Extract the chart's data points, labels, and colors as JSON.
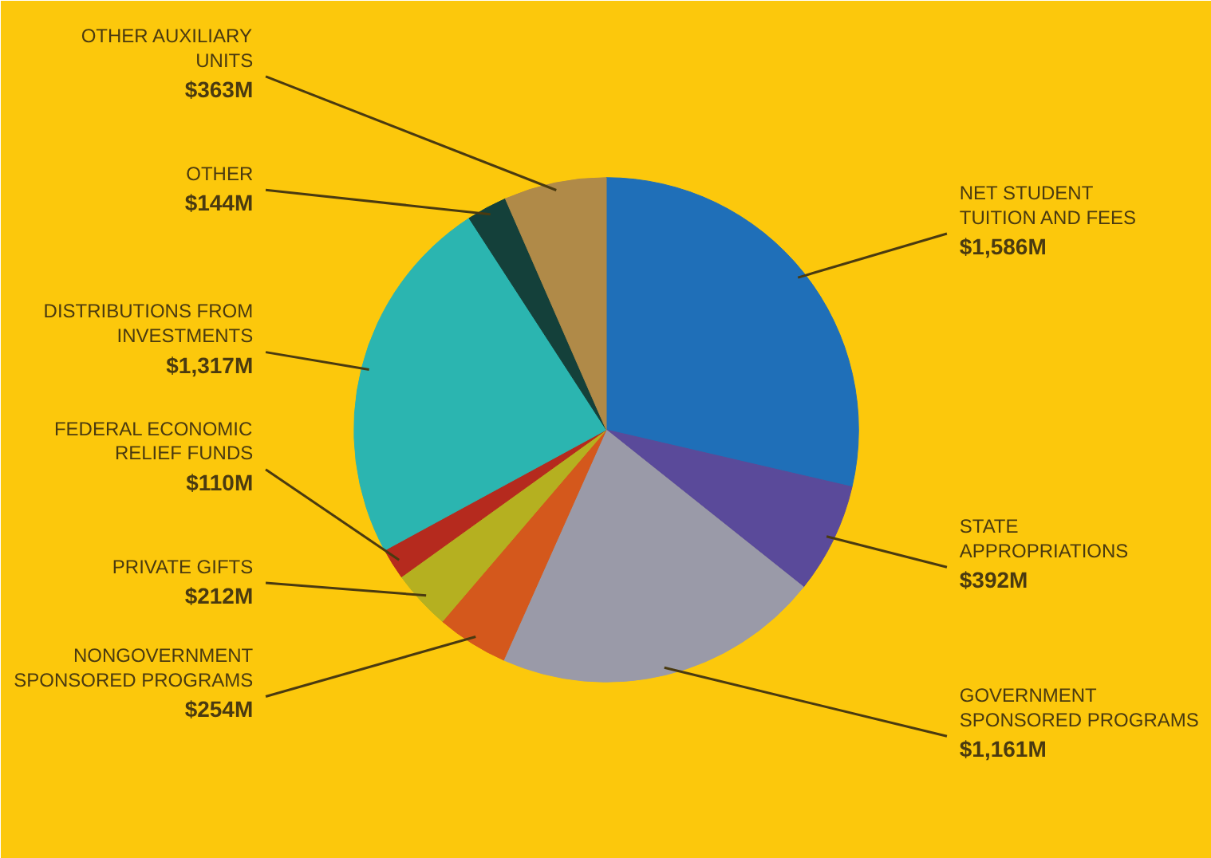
{
  "chart_data": {
    "type": "pie",
    "categories": [
      "NET STUDENT TUITION AND FEES",
      "STATE APPROPRIATIONS",
      "GOVERNMENT SPONSORED PROGRAMS",
      "NONGOVERNMENT SPONSORED PROGRAMS",
      "PRIVATE GIFTS",
      "FEDERAL ECONOMIC RELIEF FUNDS",
      "DISTRIBUTIONS FROM INVESTMENTS",
      "OTHER",
      "OTHER AUXILIARY UNITS"
    ],
    "values": [
      1586,
      392,
      1161,
      254,
      212,
      110,
      1317,
      144,
      363
    ],
    "value_labels": [
      "$1,586M",
      "$392M",
      "$1,161M",
      "$254M",
      "$212M",
      "$110M",
      "$1,317M",
      "$144M",
      "$363M"
    ],
    "colors": [
      "#1f6fb8",
      "#5a4a9a",
      "#9a9aa8",
      "#d4581c",
      "#b5b020",
      "#b52a1e",
      "#2bb5b0",
      "#14403a",
      "#b08a48"
    ]
  }
}
